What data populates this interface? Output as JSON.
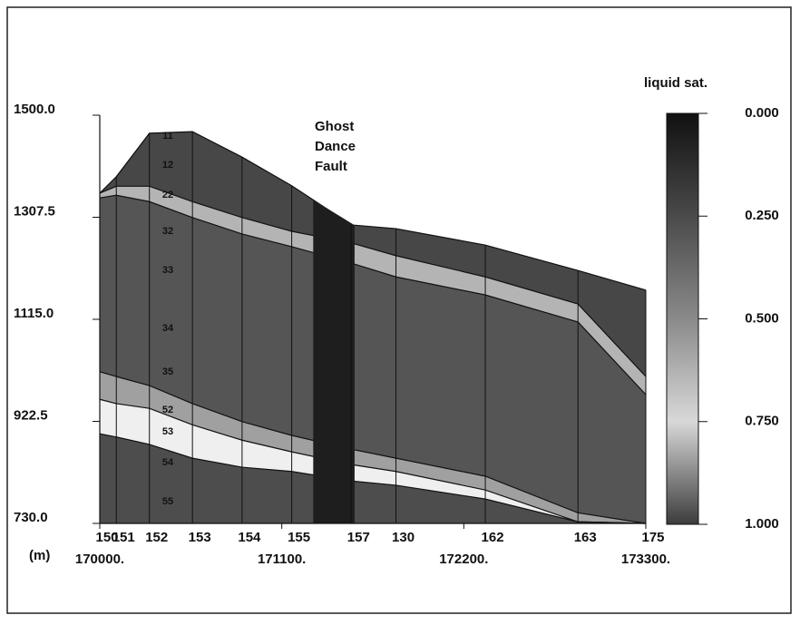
{
  "chart_data": {
    "type": "cross-section",
    "annotation": [
      "Ghost",
      "Dance",
      "Fault"
    ],
    "xlabel": "(m)",
    "categories": [
      "150",
      "151",
      "152",
      "153",
      "154",
      "155",
      "157",
      "130",
      "162",
      "163",
      "175"
    ],
    "x": [
      170000,
      170100,
      170300,
      170560,
      170860,
      171160,
      171520,
      171790,
      172330,
      172890,
      173300
    ],
    "series": [
      {
        "color": "#474747",
        "values": [
          1353,
          1384,
          1466,
          1469,
          1421,
          1367,
          1293,
          1286,
          1255,
          1207,
          1170
        ]
      },
      {
        "color": "#b4b4b4",
        "values": [
          1353,
          1366,
          1366,
          1337,
          1307,
          1281,
          1259,
          1235,
          1195,
          1144,
          1007
        ]
      },
      {
        "color": "#555555",
        "values": [
          1344,
          1349,
          1337,
          1307,
          1276,
          1252,
          1221,
          1195,
          1161,
          1110,
          973
        ]
      },
      {
        "color": "#a0a0a0",
        "values": [
          1016,
          1007,
          990,
          956,
          922,
          896,
          870,
          853,
          819,
          750,
          730
        ]
      },
      {
        "color": "#efefef",
        "values": [
          964,
          956,
          947,
          916,
          887,
          865,
          841,
          828,
          793,
          733,
          730
        ]
      },
      {
        "color": "#4d4d4d",
        "values": [
          899,
          893,
          879,
          853,
          836,
          828,
          810,
          802,
          776,
          733,
          730
        ]
      }
    ],
    "fault_x": [
      171290,
      171540
    ],
    "fault_color": "#1e1e1e",
    "layer_labels": [
      "11",
      "12",
      "22",
      "32",
      "33",
      "34",
      "35",
      "52",
      "53",
      "54",
      "55"
    ],
    "xlim": [
      170000,
      173300
    ],
    "xticks": [
      {
        "value": 170000,
        "label": "170000."
      },
      {
        "value": 171100,
        "label": "171100."
      },
      {
        "value": 172200,
        "label": "172200."
      },
      {
        "value": 173300,
        "label": "173300."
      }
    ],
    "ylim": [
      730,
      1500
    ],
    "yticks": [
      {
        "value": 730,
        "label": "730.0"
      },
      {
        "value": 922.5,
        "label": "922.5"
      },
      {
        "value": 1115,
        "label": "1115.0"
      },
      {
        "value": 1307.5,
        "label": "1307.5"
      },
      {
        "value": 1500,
        "label": "1500.0"
      }
    ],
    "colorbar": {
      "title": "liquid sat.",
      "lim": [
        0,
        1
      ],
      "ticks": [
        {
          "value": 0,
          "label": "0.000"
        },
        {
          "value": 0.25,
          "label": "0.250"
        },
        {
          "value": 0.5,
          "label": "0.500"
        },
        {
          "value": 0.75,
          "label": "0.750"
        },
        {
          "value": 1,
          "label": "1.000"
        }
      ],
      "colors": [
        "#111111",
        "#4a4a4a",
        "#8a8a8a",
        "#d8d8d8",
        "#3c3c3c"
      ]
    }
  }
}
